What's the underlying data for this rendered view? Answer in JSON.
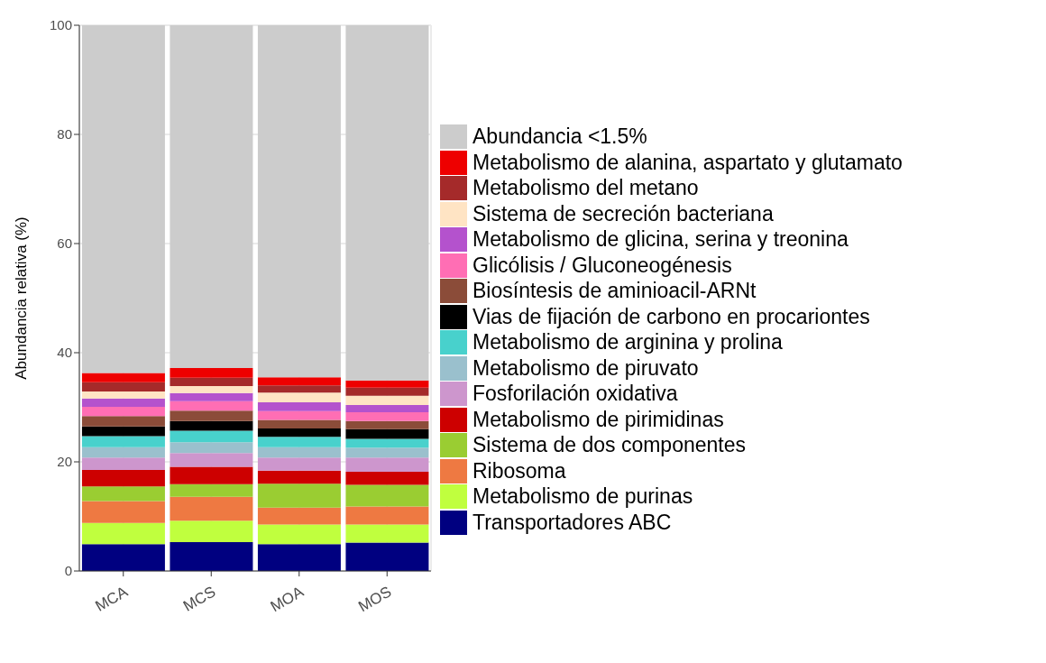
{
  "chart_data": {
    "type": "bar",
    "stacked": true,
    "ylabel": "Abundancia relativa (%)",
    "categories": [
      "MCA",
      "MCS",
      "MOA",
      "MOS"
    ],
    "ylim": [
      0,
      100
    ],
    "yticks": [
      0,
      20,
      40,
      60,
      80,
      100
    ],
    "grid": true,
    "legend": "right",
    "series": [
      {
        "name": "Transportadores ABC",
        "color": "#000080",
        "values": [
          4.9,
          5.3,
          4.9,
          5.2
        ]
      },
      {
        "name": "Metabolismo de purinas",
        "color": "#c0ff3e",
        "values": [
          3.9,
          3.9,
          3.6,
          3.3
        ]
      },
      {
        "name": "Ribosoma",
        "color": "#ee7942",
        "values": [
          4.0,
          4.4,
          3.1,
          3.3
        ]
      },
      {
        "name": "Sistema de dos componentes",
        "color": "#9acd32",
        "values": [
          2.7,
          2.3,
          4.4,
          4.0
        ]
      },
      {
        "name": "Metabolismo de pirimidinas",
        "color": "#cd0000",
        "values": [
          3.0,
          3.2,
          2.4,
          2.4
        ]
      },
      {
        "name": "Fosforilación oxidativa",
        "color": "#cd96cd",
        "values": [
          2.3,
          2.5,
          2.4,
          2.6
        ]
      },
      {
        "name": "Metabolismo de piruvato",
        "color": "#9ac0cd",
        "values": [
          1.9,
          2.0,
          1.9,
          1.8
        ]
      },
      {
        "name": "Metabolismo de arginina y prolina",
        "color": "#48d1cc",
        "values": [
          2.0,
          2.1,
          1.9,
          1.6
        ]
      },
      {
        "name": "Vias de fijación de carbono en procariontes",
        "color": "#000000",
        "values": [
          1.8,
          1.8,
          1.5,
          1.8
        ]
      },
      {
        "name": "Biosíntesis de aminioacil-ARNt",
        "color": "#8b4c39",
        "values": [
          1.9,
          1.9,
          1.6,
          1.5
        ]
      },
      {
        "name": "Glicólisis / Gluconeogénesis",
        "color": "#ff6eb4",
        "values": [
          1.7,
          1.7,
          1.6,
          1.6
        ]
      },
      {
        "name": "Metabolismo de glicina, serina y treonina",
        "color": "#b452cd",
        "values": [
          1.5,
          1.5,
          1.6,
          1.3
        ]
      },
      {
        "name": "Sistema de secreción bacteriana",
        "color": "#ffe4c4",
        "values": [
          1.3,
          1.3,
          1.8,
          1.7
        ]
      },
      {
        "name": "Metabolismo del metano",
        "color": "#a52a2a",
        "values": [
          1.7,
          1.5,
          1.3,
          1.5
        ]
      },
      {
        "name": "Metabolismo de alanina, aspartato y glutamato",
        "color": "#ee0000",
        "values": [
          1.7,
          1.8,
          1.5,
          1.3
        ]
      },
      {
        "name": "Abundancia <1.5%",
        "color": "#cccccc",
        "values": [
          63.7,
          62.8,
          64.5,
          65.1
        ]
      }
    ]
  }
}
